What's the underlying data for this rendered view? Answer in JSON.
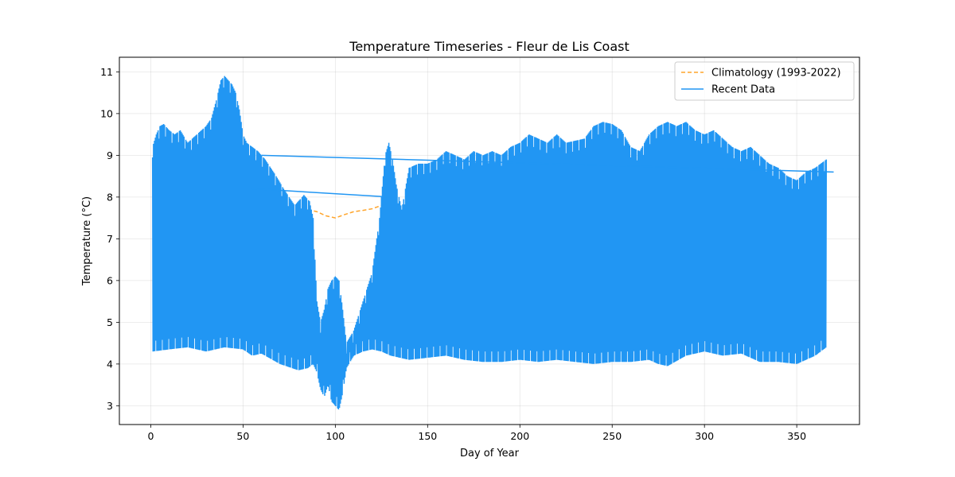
{
  "chart_data": {
    "type": "line",
    "title": "Temperature Timeseries - Fleur de Lis Coast",
    "xlabel": "Day of Year",
    "ylabel": "Temperature (°C)",
    "xlim": [
      -17,
      384
    ],
    "ylim": [
      2.55,
      11.35
    ],
    "xticks": [
      0,
      50,
      100,
      150,
      200,
      250,
      300,
      350
    ],
    "yticks": [
      3,
      4,
      5,
      6,
      7,
      8,
      9,
      10,
      11
    ],
    "grid": true,
    "legend_position": "upper right",
    "series": [
      {
        "name": "Climatology (1993-2022)",
        "color": "#ffa52c",
        "style": "dashed",
        "x": [
          85,
          90,
          95,
          100,
          105,
          110,
          115,
          120,
          125,
          128
        ],
        "y": [
          7.7,
          7.65,
          7.55,
          7.5,
          7.58,
          7.65,
          7.68,
          7.72,
          7.8,
          7.85
        ]
      },
      {
        "name": "Recent Data",
        "color": "#2196f3",
        "style": "solid",
        "upper_envelope": {
          "x": [
            1,
            3,
            5,
            7,
            10,
            13,
            16,
            20,
            25,
            30,
            33,
            36,
            38,
            40,
            42,
            44,
            46,
            48,
            50,
            52,
            55,
            58,
            62,
            65,
            68,
            72,
            75,
            78,
            80,
            83,
            86,
            88,
            90,
            92,
            94,
            96,
            98,
            100,
            102,
            104,
            106,
            110,
            115,
            120,
            124,
            127,
            129,
            131,
            133,
            136,
            140,
            145,
            150,
            155,
            160,
            165,
            170,
            175,
            180,
            185,
            190,
            195,
            200,
            205,
            210,
            215,
            220,
            225,
            230,
            235,
            240,
            245,
            250,
            255,
            260,
            265,
            270,
            275,
            280,
            285,
            290,
            295,
            300,
            305,
            310,
            315,
            320,
            325,
            330,
            335,
            340,
            345,
            350,
            355,
            360,
            363,
            366
          ],
          "y": [
            9.2,
            9.5,
            9.7,
            9.75,
            9.6,
            9.5,
            9.6,
            9.3,
            9.5,
            9.7,
            9.9,
            10.4,
            10.8,
            10.9,
            10.8,
            10.7,
            10.5,
            10.1,
            9.5,
            9.3,
            9.2,
            9.1,
            8.9,
            8.7,
            8.5,
            8.2,
            8.0,
            7.8,
            7.9,
            8.05,
            7.9,
            7.5,
            5.5,
            5.0,
            5.3,
            5.8,
            6.0,
            6.1,
            6.0,
            5.3,
            4.5,
            4.8,
            5.5,
            6.2,
            7.5,
            9.0,
            9.3,
            8.9,
            8.3,
            7.7,
            8.7,
            8.8,
            8.8,
            8.9,
            9.1,
            9.0,
            8.9,
            9.1,
            9.0,
            9.1,
            9.0,
            9.2,
            9.3,
            9.5,
            9.4,
            9.3,
            9.5,
            9.3,
            9.35,
            9.4,
            9.7,
            9.8,
            9.75,
            9.6,
            9.2,
            9.1,
            9.5,
            9.7,
            9.8,
            9.7,
            9.8,
            9.6,
            9.5,
            9.6,
            9.4,
            9.2,
            9.1,
            9.2,
            9.0,
            8.8,
            8.7,
            8.5,
            8.4,
            8.6,
            8.7,
            8.8,
            8.9
          ]
        },
        "lower_envelope": {
          "x": [
            1,
            10,
            20,
            30,
            40,
            50,
            55,
            60,
            70,
            80,
            85,
            88,
            90,
            92,
            94,
            96,
            98,
            100,
            102,
            104,
            106,
            110,
            115,
            120,
            125,
            130,
            140,
            150,
            160,
            170,
            180,
            190,
            200,
            210,
            220,
            230,
            240,
            250,
            260,
            270,
            275,
            280,
            290,
            300,
            310,
            320,
            330,
            340,
            350,
            360,
            366
          ],
          "y": [
            4.3,
            4.35,
            4.4,
            4.3,
            4.4,
            4.35,
            4.2,
            4.25,
            4.0,
            3.85,
            3.9,
            4.0,
            3.8,
            3.4,
            3.2,
            3.5,
            3.1,
            3.0,
            2.9,
            3.3,
            3.9,
            4.2,
            4.3,
            4.35,
            4.3,
            4.2,
            4.1,
            4.15,
            4.2,
            4.1,
            4.05,
            4.05,
            4.1,
            4.05,
            4.1,
            4.05,
            4.0,
            4.05,
            4.05,
            4.1,
            4.0,
            3.95,
            4.2,
            4.3,
            4.2,
            4.25,
            4.05,
            4.05,
            4.0,
            4.2,
            4.4
          ]
        },
        "connecting_lines": [
          {
            "x": [
              60,
              370
            ],
            "y": [
              9.0,
              8.6
            ]
          },
          {
            "x": [
              55,
              130
            ],
            "y": [
              8.2,
              8.0
            ]
          }
        ]
      }
    ]
  }
}
